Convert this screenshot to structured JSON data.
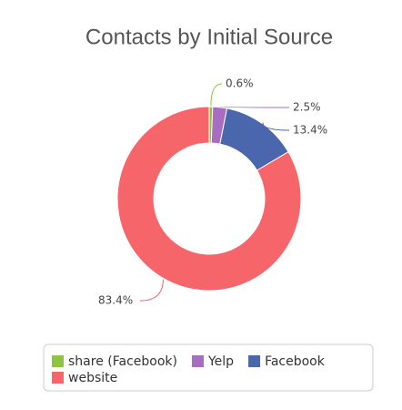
{
  "chart_data": {
    "type": "pie",
    "title": "Contacts by Initial Source",
    "categories": [
      "share (Facebook)",
      "Yelp",
      "Facebook",
      "website"
    ],
    "values": [
      0.6,
      2.5,
      13.4,
      83.4
    ],
    "value_labels": [
      "0.6%",
      "2.5%",
      "13.4%",
      "83.4%"
    ],
    "colors": [
      "#8cc63f",
      "#a86cc1",
      "#4a66ac",
      "#f5656a"
    ],
    "donut": true,
    "legend": "bottom"
  }
}
